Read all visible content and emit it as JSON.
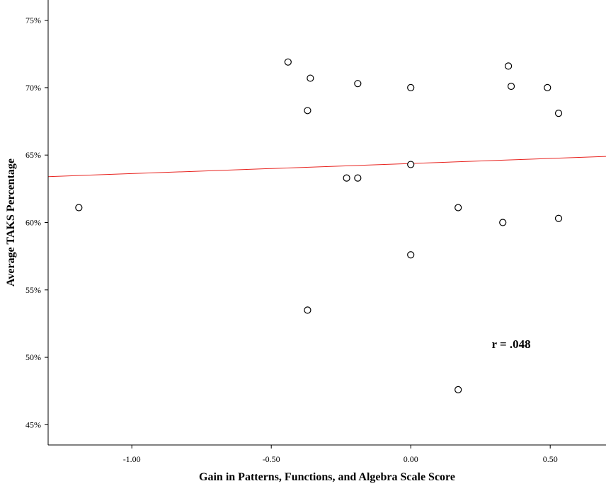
{
  "chart_data": {
    "type": "scatter",
    "title": "",
    "xlabel": "Gain in Patterns, Functions, and Algebra Scale Score",
    "ylabel": "Average TAKS Percentage",
    "xlim": [
      -1.3,
      0.7
    ],
    "ylim": [
      43.5,
      76.5
    ],
    "x_ticks": [
      -1.0,
      -0.5,
      0.0,
      0.5
    ],
    "x_tick_labels": [
      "-1.00",
      "-0.50",
      "0.00",
      "0.50"
    ],
    "y_ticks": [
      45,
      50,
      55,
      60,
      65,
      70,
      75
    ],
    "y_tick_labels": [
      "45%",
      "50%",
      "55%",
      "60%",
      "65%",
      "70%",
      "75%"
    ],
    "grid": false,
    "series": [
      {
        "x": [
          -1.19,
          -0.44,
          -0.36,
          -0.37,
          -0.19,
          -0.23,
          -0.19,
          -0.37,
          0.0,
          0.0,
          0.0,
          0.17,
          0.17,
          0.33,
          0.35,
          0.36,
          0.49,
          0.53,
          0.53
        ],
        "y": [
          61.1,
          71.9,
          70.7,
          68.3,
          70.3,
          63.3,
          63.3,
          53.5,
          70.0,
          64.3,
          57.6,
          61.1,
          47.6,
          60.0,
          71.6,
          70.1,
          70.0,
          68.1,
          60.3
        ],
        "marker": "open-circle",
        "color": "#000000"
      }
    ],
    "fit_line": {
      "x": [
        -1.3,
        0.7
      ],
      "y": [
        63.4,
        64.9
      ],
      "color": "#e8231f"
    },
    "annotations": [
      {
        "text": "r = .048",
        "x": 0.29,
        "y": 50.7
      }
    ]
  }
}
